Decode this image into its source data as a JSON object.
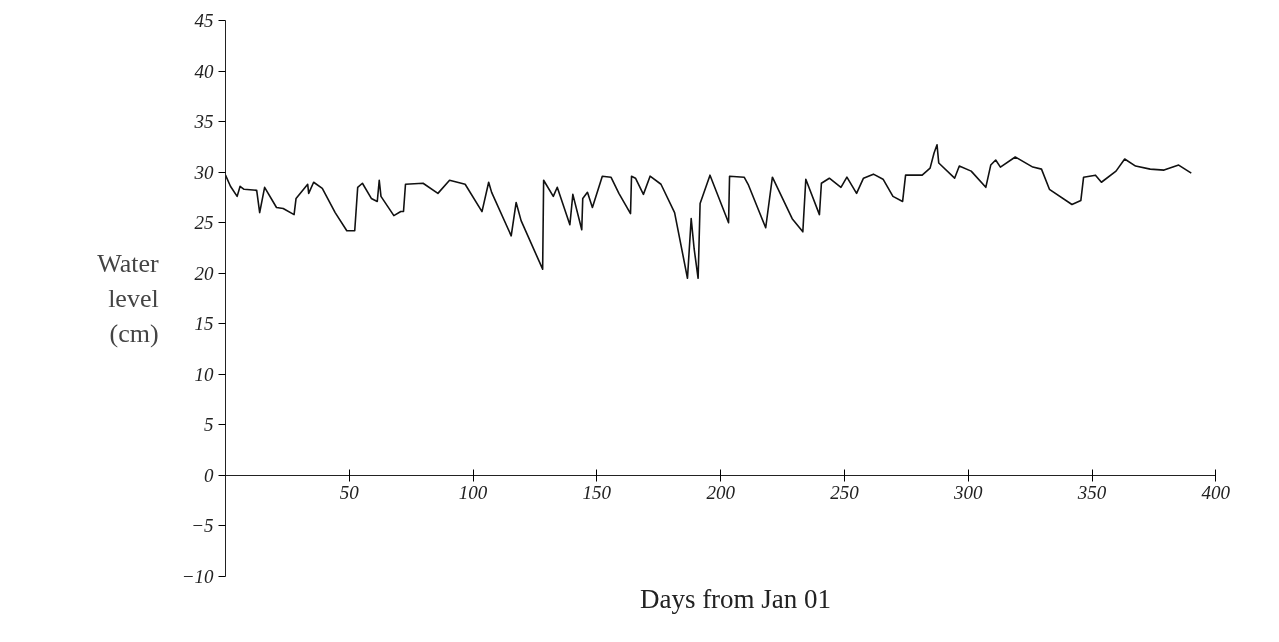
{
  "chart_data": {
    "type": "line",
    "xlabel": "Days from Jan 01",
    "ylabel": "Water level (cm)",
    "xlim": [
      0,
      400
    ],
    "xticks": [
      {
        "value": 0,
        "label": null
      },
      50,
      100,
      150,
      200,
      250,
      300,
      350,
      400
    ],
    "ylim": [
      -10,
      45
    ],
    "yticks": [
      -10,
      -5,
      0,
      5,
      10,
      15,
      20,
      25,
      30,
      35,
      40,
      45
    ],
    "grid": false,
    "marker": "none",
    "line_style": "solid",
    "series": [
      {
        "color": "#111111",
        "x": [
          0,
          2.0,
          4.7,
          5.9,
          7.5,
          12.6,
          13.8,
          15.8,
          20.6,
          23.3,
          27.7,
          28.5,
          33.2,
          33.6,
          35.6,
          39.1,
          44.3,
          49.0,
          52.2,
          53.4,
          55.3,
          58.9,
          61.3,
          62.1,
          62.8,
          68.0,
          70.8,
          71.9,
          72.7,
          79.8,
          85.8,
          90.5,
          96.8,
          103.6,
          106.3,
          107.5,
          115.4,
          117.4,
          119.4,
          128.1,
          128.5,
          132.4,
          134.0,
          139.1,
          140.3,
          143.9,
          144.3,
          146.2,
          148.2,
          152.2,
          155.7,
          158.9,
          163.6,
          164.0,
          165.6,
          168.8,
          171.5,
          175.9,
          181.4,
          186.6,
          188.1,
          189.3,
          190.9,
          191.7,
          195.7,
          203.2,
          203.6,
          209.5,
          211.1,
          218.2,
          220.9,
          228.9,
          233.2,
          234.4,
          239.9,
          240.7,
          243.9,
          248.6,
          251.0,
          254.9,
          257.7,
          261.7,
          265.6,
          269.6,
          273.5,
          274.7,
          281.4,
          284.6,
          286.2,
          287.4,
          288.1,
          294.5,
          296.4,
          301.2,
          307.1,
          309.1,
          311.1,
          313.0,
          319.0,
          326.1,
          329.6,
          332.8,
          341.9,
          345.5,
          346.6,
          351.4,
          353.8,
          359.7,
          363.2,
          367.6,
          373.5,
          379.1,
          385.0,
          390.1
        ],
        "values": [
          29.7,
          28.6,
          27.6,
          28.6,
          28.3,
          28.2,
          26.0,
          28.5,
          26.5,
          26.4,
          25.8,
          27.4,
          28.8,
          27.9,
          29.0,
          28.4,
          26.0,
          24.2,
          24.2,
          28.5,
          28.9,
          27.4,
          27.1,
          29.2,
          27.6,
          25.7,
          26.1,
          26.1,
          28.8,
          28.9,
          27.9,
          29.2,
          28.8,
          26.1,
          29.0,
          28.0,
          23.7,
          27.0,
          25.2,
          20.4,
          29.2,
          27.6,
          28.5,
          24.8,
          27.8,
          24.3,
          27.4,
          28.0,
          26.5,
          29.6,
          29.5,
          27.9,
          25.9,
          29.6,
          29.4,
          27.8,
          29.6,
          28.8,
          26.0,
          19.5,
          25.4,
          22.4,
          19.5,
          26.9,
          29.7,
          25.0,
          29.6,
          29.5,
          28.8,
          24.5,
          29.5,
          25.4,
          24.1,
          29.3,
          25.8,
          28.9,
          29.4,
          28.5,
          29.5,
          27.9,
          29.4,
          29.8,
          29.3,
          27.6,
          27.1,
          29.7,
          29.7,
          30.4,
          31.9,
          32.7,
          30.9,
          29.4,
          30.6,
          30.1,
          28.5,
          30.7,
          31.2,
          30.5,
          31.5,
          30.5,
          30.3,
          28.3,
          26.8,
          27.2,
          29.5,
          29.7,
          29.0,
          30.1,
          31.3,
          30.6,
          30.3,
          30.2,
          30.7,
          29.9
        ]
      }
    ]
  }
}
